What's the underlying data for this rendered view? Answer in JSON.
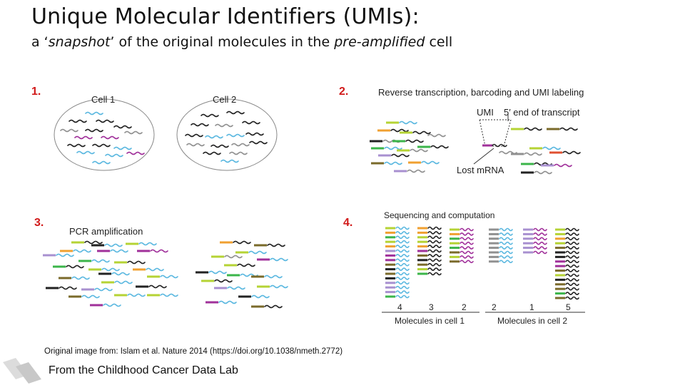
{
  "title": "Unique Molecular Identifiers (UMIs):",
  "subtitle": {
    "part1": "a ‘",
    "snapshot": "snapshot",
    "part2": "’ of the original molecules in the ",
    "pre_amplified": "pre-amplified",
    "part3": " cell"
  },
  "panels": {
    "p1": {
      "number": "1.",
      "cell1": "Cell 1",
      "cell2": "Cell 2"
    },
    "p2": {
      "number": "2.",
      "heading": "Reverse transcription, barcoding and UMI labeling",
      "umi_label": "UMI",
      "end_label": "5′ end of transcript",
      "lost_label": "Lost mRNA"
    },
    "p3": {
      "number": "3.",
      "heading": "PCR amplification"
    },
    "p4": {
      "number": "4.",
      "heading": "Sequencing and computation",
      "counts_cell1": [
        "4",
        "3",
        "2"
      ],
      "counts_cell2": [
        "2",
        "1",
        "5"
      ],
      "axis_cell1": "Molecules in cell 1",
      "axis_cell2": "Molecules in cell 2"
    }
  },
  "citation": "Original image from: Islam et al. Nature 2014 (https://doi.org/10.1038/nmeth.2772)",
  "footer": "From the Childhood Cancer Data Lab",
  "colors": {
    "number_red": "#d11a1a",
    "black_mol": "#222222",
    "blue_mol": "#5bb8e0",
    "magenta_mol": "#a0309a",
    "grey_mol": "#909090",
    "lime_bc": "#b5d334",
    "orange_bc": "#f0a030",
    "green_bc": "#3bb54a",
    "purple_bc": "#a890d0",
    "brown_bc": "#7a6a2a",
    "red_bc": "#e05030"
  }
}
